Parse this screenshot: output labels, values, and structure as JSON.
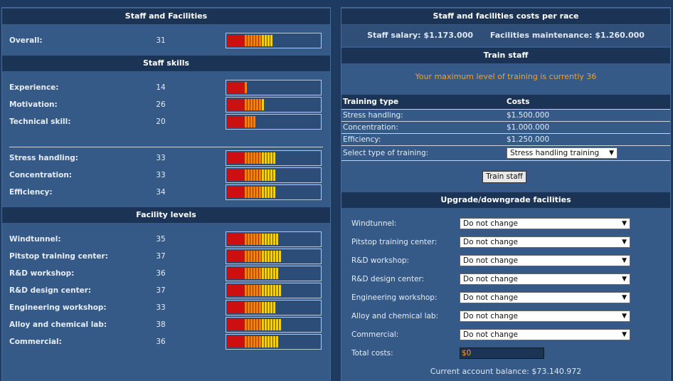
{
  "colors": {
    "bar_red": "#cc1010",
    "bar_orange": "#f08010",
    "bar_yellow": "#f0d010",
    "accent_orange": "#f0a030"
  },
  "left": {
    "staff_header": "Staff and Facilities",
    "overall": {
      "label": "Overall:",
      "value": "31",
      "level": 31
    },
    "skills_header": "Staff skills",
    "skills": [
      {
        "label": "Experience:",
        "value": "14",
        "level": 14
      },
      {
        "label": "Motivation:",
        "value": "26",
        "level": 26
      },
      {
        "label": "Technical skill:",
        "value": "20",
        "level": 20
      }
    ],
    "training_skills": [
      {
        "label": "Stress handling:",
        "value": "33",
        "level": 33
      },
      {
        "label": "Concentration:",
        "value": "33",
        "level": 33
      },
      {
        "label": "Efficiency:",
        "value": "34",
        "level": 34
      }
    ],
    "facility_header": "Facility levels",
    "facilities": [
      {
        "label": "Windtunnel:",
        "value": "35",
        "level": 35
      },
      {
        "label": "Pitstop training center:",
        "value": "37",
        "level": 37
      },
      {
        "label": "R&D workshop:",
        "value": "36",
        "level": 36
      },
      {
        "label": "R&D design center:",
        "value": "37",
        "level": 37
      },
      {
        "label": "Engineering workshop:",
        "value": "33",
        "level": 33
      },
      {
        "label": "Alloy and chemical lab:",
        "value": "38",
        "level": 38
      },
      {
        "label": "Commercial:",
        "value": "36",
        "level": 36
      }
    ]
  },
  "right": {
    "costs_header": "Staff and facilities costs per race",
    "staff_salary": "Staff salary: $1.173.000",
    "facilities_maintenance": "Facilities maintenance: $1.260.000",
    "train_header": "Train staff",
    "max_training": "Your maximum level of training is currently 36",
    "table": {
      "col_type": "Training type",
      "col_costs": "Costs",
      "rows": [
        {
          "type": "Stress handling:",
          "cost": "$1.500.000"
        },
        {
          "type": "Concentration:",
          "cost": "$1.000.000"
        },
        {
          "type": "Efficiency:",
          "cost": "$1.250.000"
        }
      ],
      "select_label": "Select type of training:",
      "select_value": "Stress handling training"
    },
    "train_button": "Train staff",
    "upgrade_header": "Upgrade/downgrade facilities",
    "upgrade_rows": [
      {
        "label": "Windtunnel:",
        "value": "Do not change"
      },
      {
        "label": "Pitstop training center:",
        "value": "Do not change"
      },
      {
        "label": "R&D workshop:",
        "value": "Do not change"
      },
      {
        "label": "R&D design center:",
        "value": "Do not change"
      },
      {
        "label": "Engineering workshop:",
        "value": "Do not change"
      },
      {
        "label": "Alloy and chemical lab:",
        "value": "Do not change"
      },
      {
        "label": "Commercial:",
        "value": "Do not change"
      }
    ],
    "total_label": "Total costs:",
    "total_value": "$0",
    "balance": "Current account balance: $73.140.972"
  }
}
